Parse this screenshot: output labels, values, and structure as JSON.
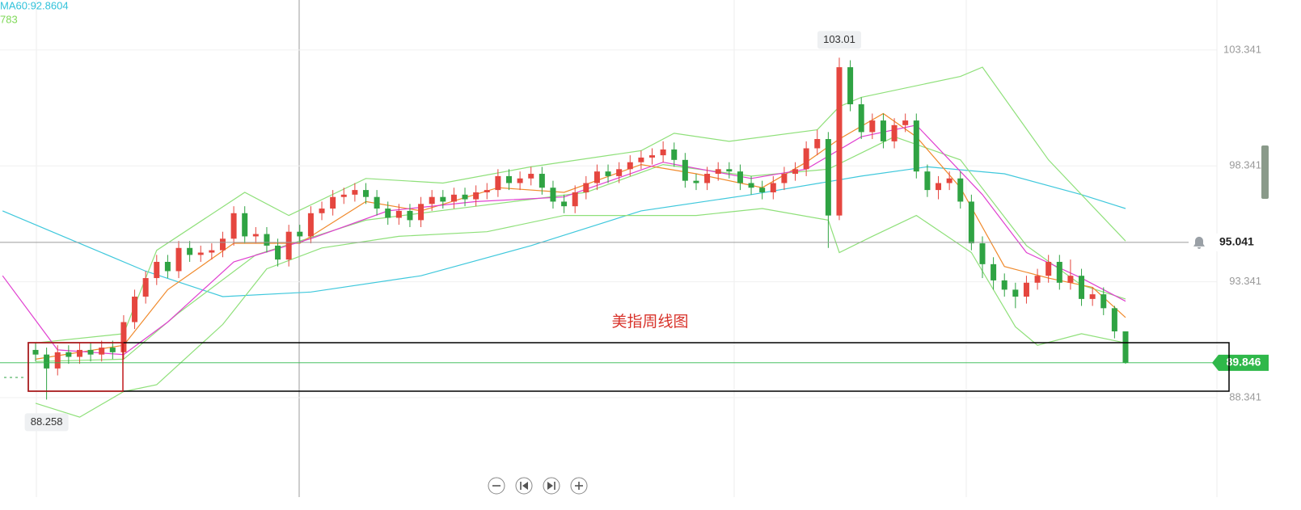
{
  "chart_data": {
    "type": "candlestick",
    "ma_label": "MA60:92.8604",
    "ma_label_2": "783",
    "annotation": "美指周线图",
    "open": [
      90.4,
      90.2,
      89.6,
      90.3,
      90.1,
      90.4,
      90.2,
      90.5,
      90.3,
      91.6,
      92.7,
      93.5,
      94.2,
      93.8,
      94.8,
      94.5,
      94.6,
      94.7,
      95.2,
      96.3,
      95.3,
      95.4,
      94.9,
      94.3,
      95.5,
      95.3,
      96.3,
      96.5,
      97.0,
      97.1,
      97.3,
      97.0,
      96.5,
      96.1,
      96.4,
      96.0,
      96.7,
      97.0,
      96.8,
      97.1,
      96.9,
      97.2,
      97.3,
      97.9,
      97.6,
      97.8,
      98.0,
      97.4,
      96.8,
      96.6,
      97.2,
      97.6,
      98.1,
      97.9,
      98.2,
      98.5,
      98.7,
      98.8,
      99.05,
      98.6,
      97.7,
      97.6,
      98.0,
      98.2,
      98.1,
      97.6,
      97.4,
      97.2,
      97.6,
      98.0,
      98.2,
      99.1,
      99.5,
      96.2,
      102.6,
      101.0,
      99.8,
      100.3,
      99.4,
      100.1,
      100.3,
      98.1,
      97.3,
      97.6,
      97.8,
      96.8,
      95.0,
      94.1,
      93.4,
      93.0,
      92.7,
      93.3,
      93.6,
      94.2,
      93.3,
      93.6,
      92.6,
      92.8,
      92.2,
      91.2
    ],
    "high": [
      90.7,
      90.5,
      90.6,
      90.6,
      90.7,
      90.7,
      90.8,
      90.8,
      91.9,
      93.0,
      93.8,
      94.5,
      94.5,
      95.1,
      95.1,
      94.9,
      95.0,
      95.5,
      96.6,
      96.6,
      95.7,
      95.7,
      95.2,
      95.8,
      95.8,
      96.6,
      96.8,
      97.3,
      97.4,
      97.6,
      97.6,
      97.3,
      96.8,
      96.7,
      96.7,
      97.0,
      97.3,
      97.3,
      97.4,
      97.4,
      97.5,
      97.6,
      98.2,
      98.2,
      98.1,
      98.3,
      98.3,
      97.7,
      97.1,
      97.5,
      97.9,
      98.4,
      98.4,
      98.5,
      98.8,
      99.0,
      99.1,
      99.4,
      99.35,
      98.9,
      98.0,
      98.3,
      98.5,
      98.5,
      98.4,
      97.9,
      97.7,
      97.9,
      98.3,
      98.5,
      99.4,
      99.9,
      99.8,
      103.01,
      102.9,
      101.3,
      100.6,
      100.6,
      100.4,
      100.6,
      100.6,
      98.4,
      97.9,
      98.1,
      98.1,
      97.1,
      95.3,
      94.4,
      93.7,
      93.3,
      93.6,
      93.9,
      94.5,
      94.5,
      94.3,
      93.9,
      93.1,
      93.1,
      92.3,
      91.2
    ],
    "low": [
      89.9,
      88.258,
      89.3,
      89.8,
      89.8,
      89.9,
      89.9,
      90.0,
      90.0,
      91.3,
      92.4,
      93.2,
      93.5,
      93.5,
      94.2,
      94.2,
      94.3,
      94.4,
      94.9,
      95.0,
      95.0,
      94.6,
      94.0,
      94.0,
      95.0,
      95.0,
      96.0,
      96.2,
      96.7,
      96.8,
      96.7,
      96.2,
      95.8,
      95.8,
      95.7,
      95.7,
      96.4,
      96.5,
      96.5,
      96.6,
      96.6,
      96.9,
      97.0,
      97.3,
      97.3,
      97.5,
      97.1,
      96.5,
      96.3,
      96.3,
      96.9,
      97.3,
      97.6,
      97.6,
      97.9,
      98.2,
      98.4,
      98.5,
      98.3,
      97.4,
      97.3,
      97.3,
      97.7,
      97.8,
      97.3,
      97.1,
      96.9,
      96.9,
      97.3,
      97.7,
      97.9,
      98.8,
      94.8,
      96.0,
      100.7,
      99.5,
      99.5,
      99.1,
      99.1,
      99.8,
      97.8,
      97.0,
      96.9,
      97.3,
      96.5,
      94.7,
      93.5,
      93.0,
      92.7,
      92.2,
      92.4,
      93.0,
      93.3,
      93.0,
      93.0,
      92.3,
      92.3,
      91.9,
      90.9,
      89.8
    ],
    "close": [
      90.2,
      89.6,
      90.3,
      90.1,
      90.4,
      90.2,
      90.5,
      90.3,
      91.6,
      92.7,
      93.5,
      94.2,
      93.8,
      94.8,
      94.5,
      94.6,
      94.7,
      95.2,
      96.3,
      95.3,
      95.4,
      94.9,
      94.3,
      95.5,
      95.3,
      96.3,
      96.5,
      97.0,
      97.1,
      97.3,
      97.0,
      96.5,
      96.1,
      96.4,
      96.0,
      96.7,
      97.0,
      96.8,
      97.1,
      96.9,
      97.2,
      97.3,
      97.9,
      97.6,
      97.8,
      98.0,
      97.4,
      96.8,
      96.6,
      97.2,
      97.6,
      98.1,
      97.9,
      98.2,
      98.5,
      98.7,
      98.8,
      99.05,
      98.6,
      97.7,
      97.6,
      98.0,
      98.2,
      98.1,
      97.6,
      97.4,
      97.2,
      97.6,
      98.0,
      98.2,
      99.1,
      99.5,
      96.2,
      102.6,
      101.0,
      99.8,
      100.3,
      99.4,
      100.1,
      100.3,
      98.1,
      97.3,
      97.6,
      97.8,
      96.8,
      95.0,
      94.1,
      93.4,
      93.0,
      92.7,
      93.3,
      93.6,
      94.2,
      93.3,
      93.6,
      92.6,
      92.8,
      92.2,
      91.2,
      89.85
    ],
    "up_color": "#e5463f",
    "down_color": "#2fa343",
    "ylim": [
      84.05,
      105.5
    ],
    "yticks": [
      103.341,
      98.341,
      93.341,
      88.341
    ],
    "grid": true,
    "crosshair": 95.041,
    "last_price": 89.846,
    "last_color": "#2fb84a",
    "lines": [
      {
        "color": "#3fc8dc",
        "x": [
          -3,
          5,
          10,
          17,
          25,
          35,
          45,
          55,
          65,
          75,
          81,
          88,
          95,
          99
        ],
        "values": [
          96.4,
          94.8,
          93.8,
          92.7,
          92.9,
          93.6,
          94.9,
          96.4,
          97.1,
          97.9,
          98.3,
          98.0,
          97.1,
          96.5
        ]
      },
      {
        "color": "#8fe07a",
        "x": [
          0,
          8,
          11,
          19,
          23,
          30,
          37,
          45,
          55,
          58,
          63,
          71,
          73,
          75,
          84,
          86,
          92,
          99
        ],
        "values": [
          90.7,
          91.1,
          94.7,
          97.2,
          96.2,
          97.8,
          97.6,
          98.3,
          99.0,
          99.75,
          99.4,
          99.9,
          100.9,
          101.3,
          102.2,
          102.6,
          98.6,
          95.1
        ]
      },
      {
        "color": "#8fe07a",
        "x": [
          0,
          4,
          8,
          11,
          17,
          21,
          26,
          33,
          41,
          48,
          60,
          66,
          72,
          73,
          76,
          80,
          85,
          89,
          91,
          95,
          99
        ],
        "values": [
          88.1,
          87.5,
          88.6,
          88.9,
          91.5,
          93.9,
          94.8,
          95.3,
          95.5,
          96.2,
          96.2,
          96.5,
          96.0,
          94.6,
          95.3,
          96.2,
          94.6,
          91.4,
          90.6,
          91.1,
          90.7
        ]
      },
      {
        "color": "#8fe07a",
        "x": [
          0,
          8,
          13,
          20,
          30,
          40,
          50,
          57,
          65,
          72,
          78,
          84,
          90,
          95,
          99
        ],
        "values": [
          89.9,
          90.0,
          92.0,
          94.5,
          96.0,
          96.6,
          97.2,
          98.4,
          97.9,
          98.2,
          99.6,
          98.6,
          94.9,
          93.2,
          92.6
        ]
      },
      {
        "color": "#f08a2c",
        "x": [
          0,
          8,
          12,
          18,
          24,
          30,
          35,
          42,
          48,
          55,
          60,
          66,
          70,
          73,
          77,
          80,
          84,
          88,
          92,
          96,
          99
        ],
        "values": [
          90.0,
          90.6,
          93.0,
          95.0,
          95.0,
          96.8,
          96.4,
          97.4,
          97.2,
          98.4,
          98.0,
          97.4,
          98.5,
          99.5,
          100.6,
          99.6,
          97.4,
          94.0,
          93.5,
          93.1,
          91.8
        ]
      },
      {
        "color": "#e040d0",
        "x": [
          -3,
          2,
          8,
          12,
          18,
          25,
          32,
          40,
          48,
          57,
          65,
          70,
          75,
          80,
          86,
          90,
          95,
          99
        ],
        "values": [
          93.6,
          90.4,
          90.2,
          91.6,
          94.2,
          95.2,
          96.4,
          96.8,
          97.0,
          98.5,
          97.8,
          98.2,
          99.6,
          100.1,
          97.1,
          94.6,
          93.5,
          92.5
        ]
      }
    ]
  }
}
